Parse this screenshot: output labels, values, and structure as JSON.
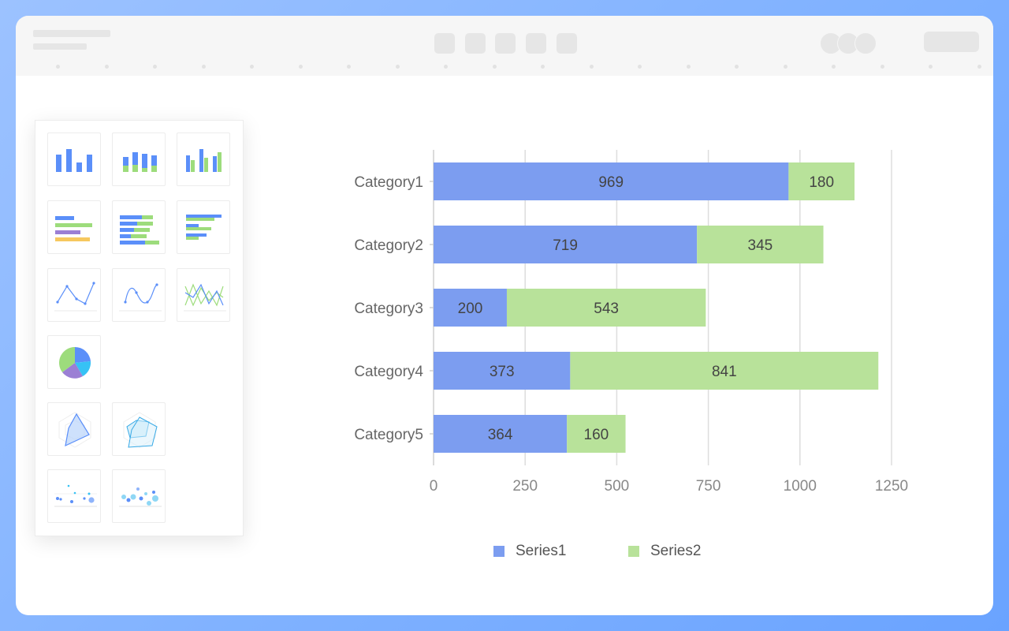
{
  "window": {
    "toolbar": {
      "buttons": [
        "toolbar-button-1",
        "toolbar-button-2",
        "toolbar-button-3",
        "toolbar-button-4",
        "toolbar-button-5"
      ]
    }
  },
  "chart_picker": {
    "thumbnails": [
      {
        "id": "bar-chart-icon",
        "type": "bar"
      },
      {
        "id": "stacked-bar-chart-icon",
        "type": "stacked-bar"
      },
      {
        "id": "grouped-bar-chart-icon",
        "type": "grouped-bar"
      },
      {
        "id": "horizontal-bar-chart-icon",
        "type": "horizontal-bar"
      },
      {
        "id": "stacked-horizontal-bar-chart-icon",
        "type": "stacked-horizontal-bar"
      },
      {
        "id": "grouped-horizontal-bar-chart-icon",
        "type": "grouped-horizontal-bar"
      },
      {
        "id": "line-chart-icon",
        "type": "line"
      },
      {
        "id": "smooth-line-chart-icon",
        "type": "smooth-line"
      },
      {
        "id": "multi-line-chart-icon",
        "type": "multi-line"
      },
      {
        "id": "pie-chart-icon",
        "type": "pie"
      },
      {
        "id": "radar-chart-icon",
        "type": "radar"
      },
      {
        "id": "multi-radar-chart-icon",
        "type": "multi-radar"
      },
      {
        "id": "scatter-chart-icon",
        "type": "scatter"
      },
      {
        "id": "bubble-chart-icon",
        "type": "bubble"
      }
    ]
  },
  "colors": {
    "series1": "#7c9df0",
    "series2": "#b8e29a",
    "accent_blue": "#5b8ff9",
    "accent_green": "#9ddc7c",
    "accent_purple": "#9b7fd4",
    "accent_yellow": "#f6c85f"
  },
  "chart_data": {
    "type": "bar",
    "orientation": "horizontal",
    "stacked": true,
    "categories": [
      "Category1",
      "Category2",
      "Category3",
      "Category4",
      "Category5"
    ],
    "series": [
      {
        "name": "Series1",
        "values": [
          969,
          719,
          200,
          373,
          364
        ]
      },
      {
        "name": "Series2",
        "values": [
          180,
          345,
          543,
          841,
          160
        ]
      }
    ],
    "xlim": [
      0,
      1250
    ],
    "xticks": [
      "0",
      "250",
      "500",
      "750",
      "1000",
      "1250"
    ],
    "grid": true,
    "legend": "bottom-center",
    "data_labels": true
  }
}
